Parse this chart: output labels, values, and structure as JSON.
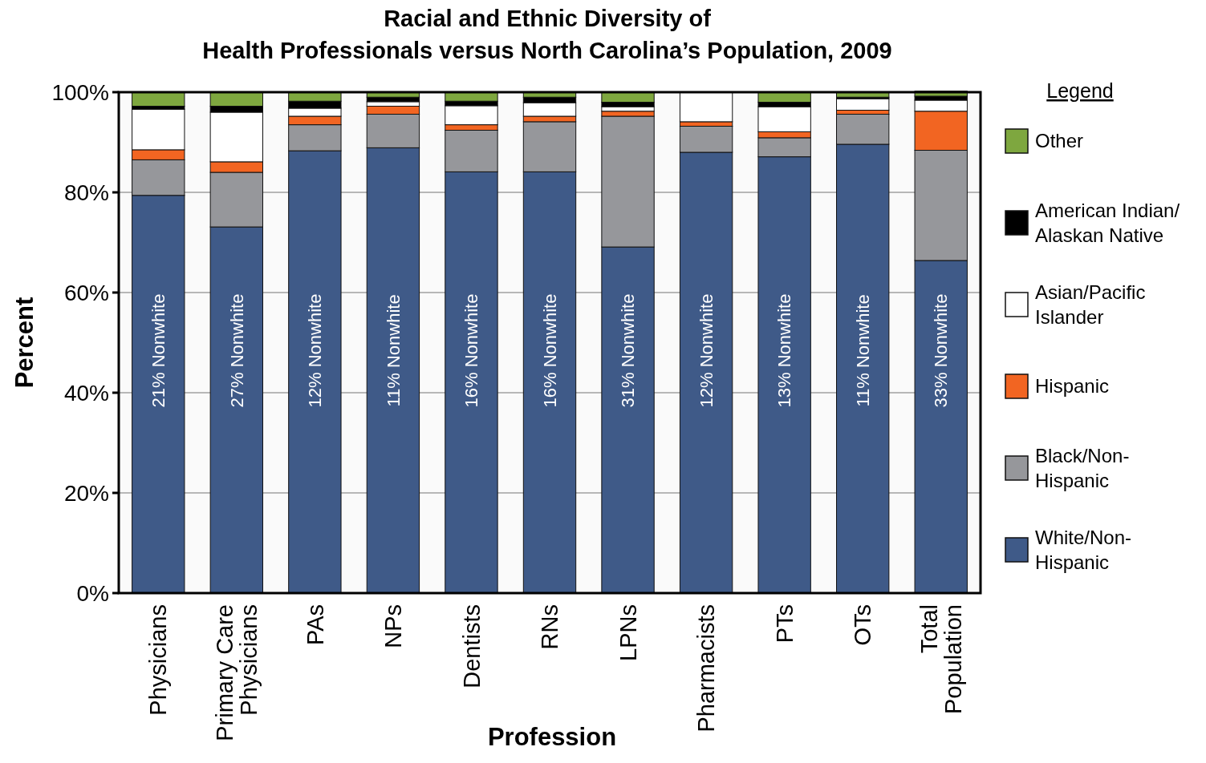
{
  "chart_data": {
    "type": "bar",
    "stacked": true,
    "title": "Racial and Ethnic Diversity of\nHealth Professionals versus North Carolina’s Population, 2009",
    "xlabel": "Profession",
    "ylabel": "Percent",
    "legend_title": "Legend",
    "legend": "right",
    "grid": "y",
    "categories": [
      "Physicians",
      "Primary Care Physicians",
      "PAs",
      "NPs",
      "Dentists",
      "RNs",
      "LPNs",
      "Pharmacists",
      "PTs",
      "OTs",
      "Total Population"
    ],
    "ylim": [
      0,
      100
    ],
    "yticks": [
      {
        "value": 0,
        "label": "0%"
      },
      {
        "value": 20,
        "label": "20%"
      },
      {
        "value": 40,
        "label": "40%"
      },
      {
        "value": 60,
        "label": "60%"
      },
      {
        "value": 80,
        "label": "80%"
      },
      {
        "value": 100,
        "label": "100%"
      }
    ],
    "series": [
      {
        "name": "White/Non-Hispanic",
        "color": "#3f5a88",
        "values": [
          79.4,
          73.1,
          88.3,
          88.9,
          84.1,
          84.1,
          69.1,
          88.0,
          87.1,
          89.6,
          66.4
        ]
      },
      {
        "name": "Black/Non-Hispanic",
        "color": "#96979b",
        "values": [
          7.1,
          10.9,
          5.2,
          6.7,
          8.3,
          10.0,
          26.1,
          5.2,
          3.8,
          6.0,
          22.0
        ]
      },
      {
        "name": "Hispanic",
        "color": "#f26522",
        "values": [
          2.0,
          2.1,
          1.7,
          1.6,
          1.1,
          1.1,
          1.0,
          0.9,
          1.2,
          0.8,
          7.8
        ]
      },
      {
        "name": "Asian/Pacific Islander",
        "color": "#ffffff",
        "values": [
          8.1,
          9.9,
          1.6,
          0.9,
          3.8,
          2.7,
          0.9,
          5.9,
          5.0,
          2.3,
          2.2
        ]
      },
      {
        "name": "American Indian/Alaskan Native",
        "color": "#000000",
        "values": [
          0.6,
          1.2,
          1.4,
          0.9,
          0.9,
          1.1,
          0.9,
          0,
          0.9,
          0.3,
          0.8
        ]
      },
      {
        "name": "Other",
        "color": "#7ea73f",
        "values": [
          2.8,
          2.8,
          1.8,
          1.0,
          1.8,
          1.0,
          2.0,
          0,
          2.0,
          1.0,
          1.0
        ]
      }
    ],
    "annotations": [
      "21% Nonwhite",
      "27% Nonwhite",
      "12% Nonwhite",
      "11% Nonwhite",
      "16% Nonwhite",
      "16% Nonwhite",
      "31% Nonwhite",
      "12% Nonwhite",
      "13% Nonwhite",
      "11% Nonwhite",
      "33% Nonwhite"
    ]
  }
}
